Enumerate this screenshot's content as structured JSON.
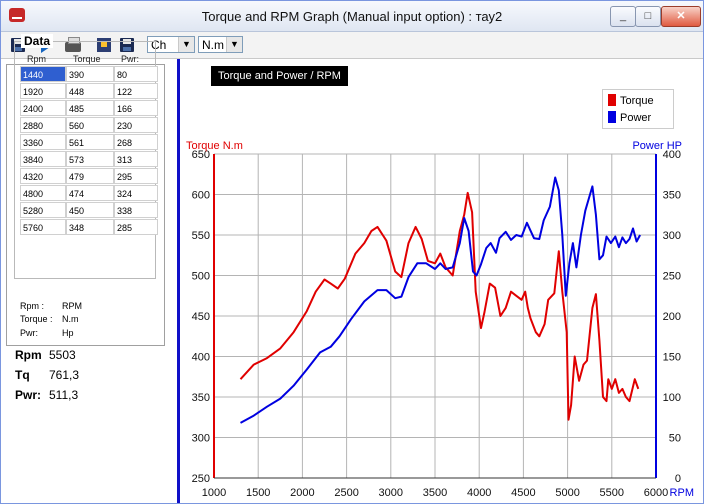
{
  "window": {
    "title": "Torque and RPM Graph (Manual input option) : тау2",
    "minimize": "_",
    "maximize": "□",
    "close": "✕"
  },
  "toolbar": {
    "icons": [
      "save-icon",
      "play-icon",
      "print-icon",
      "export-icon",
      "save-as-icon"
    ],
    "select1": "Ch",
    "select2": "N.m"
  },
  "left_panel": {
    "group_title": "Data",
    "columns": [
      "Rpm",
      "Torque",
      "Pwr:"
    ],
    "rows": [
      [
        "1440",
        "390",
        "80"
      ],
      [
        "1920",
        "448",
        "122"
      ],
      [
        "2400",
        "485",
        "166"
      ],
      [
        "2880",
        "560",
        "230"
      ],
      [
        "3360",
        "561",
        "268"
      ],
      [
        "3840",
        "573",
        "313"
      ],
      [
        "4320",
        "479",
        "295"
      ],
      [
        "4800",
        "474",
        "324"
      ],
      [
        "5280",
        "450",
        "338"
      ],
      [
        "5760",
        "348",
        "285"
      ]
    ],
    "legend": [
      {
        "key": "Rpm :",
        "value": "RPM"
      },
      {
        "key": "Torque :",
        "value": "N.m"
      },
      {
        "key": "Pwr:",
        "value": "Hp"
      }
    ],
    "readouts": [
      {
        "label": "Rpm",
        "value": "5503"
      },
      {
        "label": "Tq",
        "value": "761,3"
      },
      {
        "label": "Pwr:",
        "value": "511,3"
      }
    ]
  },
  "chart_data": {
    "type": "line",
    "title": "Torque and Power / RPM",
    "xlabel": "RPM",
    "ylabel": "Torque N.m",
    "y2label": "Power HP",
    "xlim": [
      1000,
      6000
    ],
    "ylim": [
      250,
      650
    ],
    "y2lim": [
      0,
      400
    ],
    "xticks": [
      "1000",
      "1500",
      "2000",
      "2500",
      "3000",
      "3500",
      "4000",
      "4500",
      "5000",
      "5500",
      "6000"
    ],
    "yticks": [
      "250",
      "300",
      "350",
      "400",
      "450",
      "500",
      "550",
      "600",
      "650"
    ],
    "y2ticks": [
      "0",
      "50",
      "100",
      "150",
      "200",
      "250",
      "300",
      "350",
      "400"
    ],
    "grid": true,
    "legend_position": "top-right",
    "series": [
      {
        "name": "Torque",
        "axis": "left",
        "color": "#e00000",
        "points": [
          [
            1300,
            372
          ],
          [
            1450,
            390
          ],
          [
            1600,
            398
          ],
          [
            1750,
            410
          ],
          [
            1900,
            430
          ],
          [
            2050,
            456
          ],
          [
            2150,
            480
          ],
          [
            2250,
            495
          ],
          [
            2320,
            490
          ],
          [
            2400,
            484
          ],
          [
            2480,
            496
          ],
          [
            2600,
            527
          ],
          [
            2700,
            540
          ],
          [
            2780,
            555
          ],
          [
            2850,
            560
          ],
          [
            2950,
            543
          ],
          [
            3050,
            505
          ],
          [
            3120,
            498
          ],
          [
            3200,
            540
          ],
          [
            3280,
            560
          ],
          [
            3350,
            545
          ],
          [
            3420,
            518
          ],
          [
            3500,
            515
          ],
          [
            3560,
            527
          ],
          [
            3620,
            510
          ],
          [
            3700,
            500
          ],
          [
            3780,
            555
          ],
          [
            3830,
            575
          ],
          [
            3870,
            602
          ],
          [
            3920,
            578
          ],
          [
            3960,
            480
          ],
          [
            4020,
            435
          ],
          [
            4060,
            455
          ],
          [
            4120,
            490
          ],
          [
            4180,
            485
          ],
          [
            4240,
            450
          ],
          [
            4300,
            460
          ],
          [
            4360,
            480
          ],
          [
            4420,
            475
          ],
          [
            4480,
            470
          ],
          [
            4520,
            480
          ],
          [
            4550,
            460
          ],
          [
            4580,
            447
          ],
          [
            4640,
            430
          ],
          [
            4680,
            425
          ],
          [
            4740,
            440
          ],
          [
            4780,
            470
          ],
          [
            4850,
            478
          ],
          [
            4900,
            530
          ],
          [
            4940,
            480
          ],
          [
            4990,
            430
          ],
          [
            5010,
            322
          ],
          [
            5040,
            340
          ],
          [
            5080,
            400
          ],
          [
            5130,
            370
          ],
          [
            5180,
            390
          ],
          [
            5220,
            395
          ],
          [
            5280,
            460
          ],
          [
            5320,
            477
          ],
          [
            5360,
            420
          ],
          [
            5400,
            350
          ],
          [
            5440,
            345
          ],
          [
            5460,
            372
          ],
          [
            5500,
            360
          ],
          [
            5540,
            372
          ],
          [
            5580,
            355
          ],
          [
            5620,
            360
          ],
          [
            5660,
            350
          ],
          [
            5700,
            345
          ],
          [
            5760,
            372
          ],
          [
            5800,
            360
          ]
        ]
      },
      {
        "name": "Power",
        "axis": "right",
        "color": "#0000e0",
        "points": [
          [
            1300,
            68
          ],
          [
            1450,
            77
          ],
          [
            1600,
            88
          ],
          [
            1750,
            98
          ],
          [
            1900,
            114
          ],
          [
            2050,
            134
          ],
          [
            2200,
            155
          ],
          [
            2320,
            162
          ],
          [
            2420,
            175
          ],
          [
            2550,
            196
          ],
          [
            2700,
            218
          ],
          [
            2850,
            232
          ],
          [
            2950,
            232
          ],
          [
            3050,
            222
          ],
          [
            3120,
            224
          ],
          [
            3200,
            248
          ],
          [
            3300,
            265
          ],
          [
            3400,
            265
          ],
          [
            3500,
            258
          ],
          [
            3560,
            265
          ],
          [
            3620,
            258
          ],
          [
            3700,
            260
          ],
          [
            3780,
            290
          ],
          [
            3830,
            321
          ],
          [
            3880,
            305
          ],
          [
            3930,
            255
          ],
          [
            3970,
            250
          ],
          [
            4020,
            264
          ],
          [
            4080,
            284
          ],
          [
            4130,
            290
          ],
          [
            4190,
            278
          ],
          [
            4230,
            296
          ],
          [
            4300,
            304
          ],
          [
            4360,
            294
          ],
          [
            4420,
            300
          ],
          [
            4480,
            298
          ],
          [
            4540,
            315
          ],
          [
            4620,
            296
          ],
          [
            4680,
            295
          ],
          [
            4730,
            318
          ],
          [
            4800,
            335
          ],
          [
            4860,
            371
          ],
          [
            4900,
            355
          ],
          [
            4940,
            300
          ],
          [
            4980,
            225
          ],
          [
            5020,
            265
          ],
          [
            5060,
            290
          ],
          [
            5100,
            260
          ],
          [
            5150,
            300
          ],
          [
            5200,
            330
          ],
          [
            5240,
            345
          ],
          [
            5280,
            360
          ],
          [
            5320,
            325
          ],
          [
            5360,
            270
          ],
          [
            5400,
            275
          ],
          [
            5440,
            298
          ],
          [
            5490,
            290
          ],
          [
            5540,
            298
          ],
          [
            5580,
            285
          ],
          [
            5620,
            297
          ],
          [
            5660,
            290
          ],
          [
            5700,
            295
          ],
          [
            5740,
            308
          ],
          [
            5780,
            292
          ],
          [
            5820,
            300
          ]
        ]
      }
    ]
  }
}
